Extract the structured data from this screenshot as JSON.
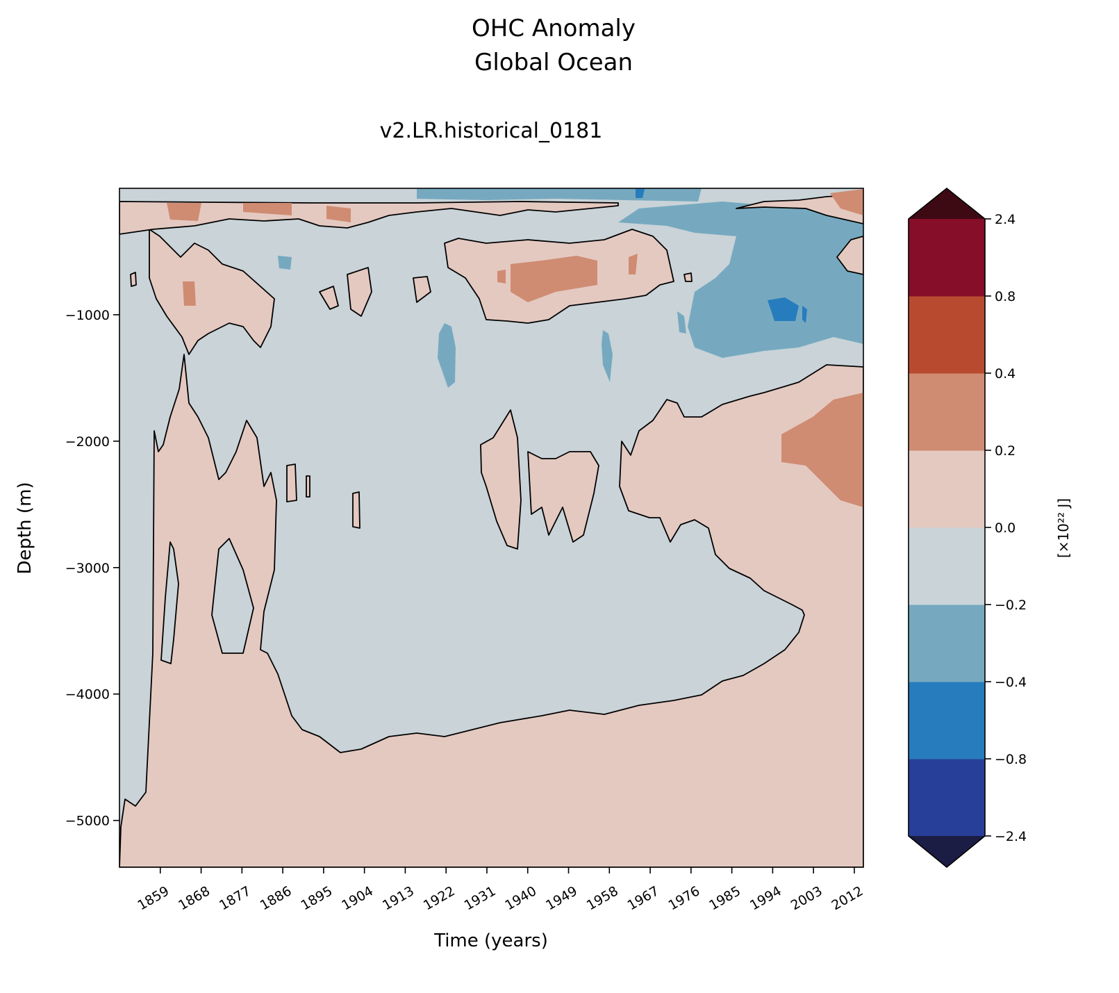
{
  "chart_data": {
    "type": "heatmap",
    "subtype": "filled-contour",
    "title": "OHC Anomaly",
    "title_line2": "Global Ocean",
    "subtitle": "v2.LR.historical_0181",
    "xlabel": "Time (years)",
    "ylabel": "Depth (m)",
    "colorbar_label": "[×10²² J]",
    "xlim": [
      1850,
      2014
    ],
    "ylim": [
      -5370,
      0
    ],
    "xticks": [
      "1859",
      "1868",
      "1877",
      "1886",
      "1895",
      "1904",
      "1913",
      "1922",
      "1931",
      "1940",
      "1949",
      "1958",
      "1967",
      "1976",
      "1985",
      "1994",
      "2003",
      "2012"
    ],
    "xtick_values": [
      1859,
      1868,
      1877,
      1886,
      1895,
      1904,
      1913,
      1922,
      1931,
      1940,
      1949,
      1958,
      1967,
      1976,
      1985,
      1994,
      2003,
      2012
    ],
    "yticks": [
      "−1000",
      "−2000",
      "−3000",
      "−4000",
      "−5000"
    ],
    "ytick_values": [
      -1000,
      -2000,
      -3000,
      -4000,
      -5000
    ],
    "levels": [
      "−2.4",
      "−0.8",
      "−0.4",
      "−0.2",
      "0.0",
      "0.2",
      "0.4",
      "0.8",
      "2.4"
    ],
    "level_values": [
      -2.4,
      -0.8,
      -0.4,
      -0.2,
      0.0,
      0.2,
      0.4,
      0.8,
      2.4
    ],
    "colors": {
      "under": "#1b1d45",
      "bands": [
        "#283f9a",
        "#277cbd",
        "#76a9bf",
        "#c9d3d8",
        "#e4c9c1",
        "#cf8c72",
        "#b84a30",
        "#870e28"
      ],
      "over": "#3d0a14"
    },
    "extend": "both",
    "contour_line_level": 0.0,
    "grid": false
  }
}
